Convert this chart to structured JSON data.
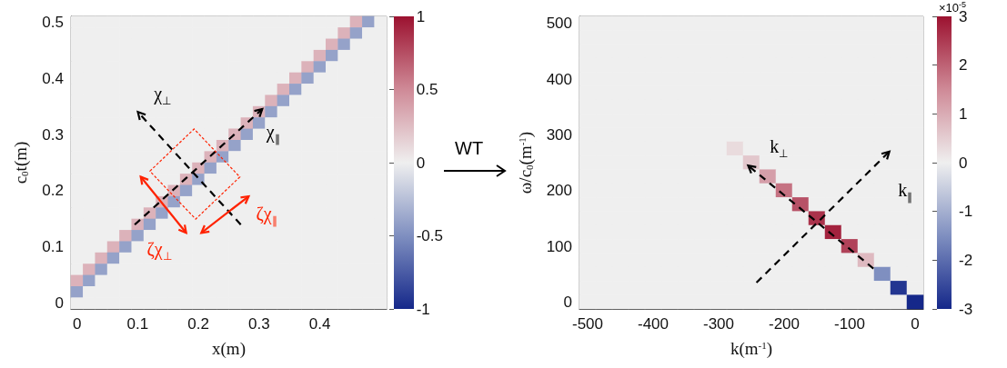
{
  "chart_data": [
    {
      "type": "heatmap",
      "xlabel": "x(m)",
      "ylabel": "c$_{0}$t(m)",
      "categories": [
        "0",
        null,
        null,
        null,
        null,
        "0.1",
        null,
        null,
        null,
        null,
        "0.2",
        null,
        null,
        null,
        null,
        "0.3",
        null,
        null,
        null,
        null,
        "0.4",
        null,
        null,
        null,
        null,
        null
      ],
      "y_categories": [
        "0.5",
        null,
        null,
        null,
        null,
        "0.4",
        null,
        null,
        null,
        null,
        "0.3",
        null,
        null,
        null,
        null,
        "0.2",
        null,
        null,
        null,
        null,
        "0.1",
        null,
        null,
        null,
        null,
        "0"
      ],
      "clim": [
        -1,
        1
      ],
      "cticks": [
        -1,
        -0.5,
        0,
        0.5,
        1
      ],
      "cells": [
        [
          0,
          0,
          0,
          0,
          0,
          0,
          0,
          0,
          0,
          0,
          0,
          0,
          0,
          0,
          0,
          0,
          0,
          0,
          0,
          0,
          0,
          0,
          0,
          0.3,
          -0.4,
          0
        ],
        [
          0,
          0,
          0,
          0,
          0,
          0,
          0,
          0,
          0,
          0,
          0,
          0,
          0,
          0,
          0,
          0,
          0,
          0,
          0,
          0,
          0,
          0,
          0.3,
          -0.4,
          0,
          0
        ],
        [
          0,
          0,
          0,
          0,
          0,
          0,
          0,
          0,
          0,
          0,
          0,
          0,
          0,
          0,
          0,
          0,
          0,
          0,
          0,
          0,
          0,
          0.3,
          -0.4,
          0,
          0,
          0
        ],
        [
          0,
          0,
          0,
          0,
          0,
          0,
          0,
          0,
          0,
          0,
          0,
          0,
          0,
          0,
          0,
          0,
          0,
          0,
          0,
          0,
          0.3,
          -0.4,
          0,
          0,
          0,
          0
        ],
        [
          0,
          0,
          0,
          0,
          0,
          0,
          0,
          0,
          0,
          0,
          0,
          0,
          0,
          0,
          0,
          0,
          0,
          0,
          0,
          0.3,
          -0.4,
          0,
          0,
          0,
          0,
          0
        ],
        [
          0,
          0,
          0,
          0,
          0,
          0,
          0,
          0,
          0,
          0,
          0,
          0,
          0,
          0,
          0,
          0,
          0,
          0,
          0.3,
          -0.4,
          0,
          0,
          0,
          0,
          0,
          0
        ],
        [
          0,
          0,
          0,
          0,
          0,
          0,
          0,
          0,
          0,
          0,
          0,
          0,
          0,
          0,
          0,
          0,
          0,
          0.3,
          -0.4,
          0,
          0,
          0,
          0,
          0,
          0,
          0
        ],
        [
          0,
          0,
          0,
          0,
          0,
          0,
          0,
          0,
          0,
          0,
          0,
          0,
          0,
          0,
          0,
          0,
          0.3,
          -0.4,
          0,
          0,
          0,
          0,
          0,
          0,
          0,
          0
        ],
        [
          0,
          0,
          0,
          0,
          0,
          0,
          0,
          0,
          0,
          0,
          0,
          0,
          0,
          0,
          0,
          0.3,
          -0.4,
          0,
          0,
          0,
          0,
          0,
          0,
          0,
          0,
          0
        ],
        [
          0,
          0,
          0,
          0,
          0,
          0,
          0,
          0,
          0,
          0,
          0,
          0,
          0,
          0,
          0.3,
          -0.4,
          0,
          0,
          0,
          0,
          0,
          0,
          0,
          0,
          0,
          0
        ],
        [
          0,
          0,
          0,
          0,
          0,
          0,
          0,
          0,
          0,
          0,
          0,
          0,
          0,
          0.3,
          -0.4,
          0,
          0,
          0,
          0,
          0,
          0,
          0,
          0,
          0,
          0,
          0
        ],
        [
          0,
          0,
          0,
          0,
          0,
          0,
          0,
          0,
          0,
          0,
          0,
          0,
          0.3,
          -0.4,
          0,
          0,
          0,
          0,
          0,
          0,
          0,
          0,
          0,
          0,
          0,
          0
        ],
        [
          0,
          0,
          0,
          0,
          0,
          0,
          0,
          0,
          0,
          0,
          0,
          0.3,
          -0.4,
          0,
          0,
          0,
          0,
          0,
          0,
          0,
          0,
          0,
          0,
          0,
          0,
          0
        ],
        [
          0,
          0,
          0,
          0,
          0,
          0,
          0,
          0,
          0,
          0,
          0.3,
          -0.4,
          0,
          0,
          0,
          0,
          0,
          0,
          0,
          0,
          0,
          0,
          0,
          0,
          0,
          0
        ],
        [
          0,
          0,
          0,
          0,
          0,
          0,
          0,
          0,
          0,
          0.3,
          -0.4,
          0,
          0,
          0,
          0,
          0,
          0,
          0,
          0,
          0,
          0,
          0,
          0,
          0,
          0,
          0
        ],
        [
          0,
          0,
          0,
          0,
          0,
          0,
          0,
          0,
          0.3,
          -0.4,
          0,
          0,
          0,
          0,
          0,
          0,
          0,
          0,
          0,
          0,
          0,
          0,
          0,
          0,
          0,
          0
        ],
        [
          0,
          0,
          0,
          0,
          0,
          0,
          0,
          0.3,
          -0.4,
          0,
          0,
          0,
          0,
          0,
          0,
          0,
          0,
          0,
          0,
          0,
          0,
          0,
          0,
          0,
          0,
          0
        ],
        [
          0,
          0,
          0,
          0,
          0,
          0,
          0.3,
          -0.4,
          0,
          0,
          0,
          0,
          0,
          0,
          0,
          0,
          0,
          0,
          0,
          0,
          0,
          0,
          0,
          0,
          0,
          0
        ],
        [
          0,
          0,
          0,
          0,
          0,
          0.3,
          -0.4,
          0,
          0,
          0,
          0,
          0,
          0,
          0,
          0,
          0,
          0,
          0,
          0,
          0,
          0,
          0,
          0,
          0,
          0,
          0
        ],
        [
          0,
          0,
          0,
          0,
          0.3,
          -0.4,
          0,
          0,
          0,
          0,
          0,
          0,
          0,
          0,
          0,
          0,
          0,
          0,
          0,
          0,
          0,
          0,
          0,
          0,
          0,
          0
        ],
        [
          0,
          0,
          0,
          0.3,
          -0.4,
          0,
          0,
          0,
          0,
          0,
          0,
          0,
          0,
          0,
          0,
          0,
          0,
          0,
          0,
          0,
          0,
          0,
          0,
          0,
          0,
          0
        ],
        [
          0,
          0,
          0.3,
          -0.4,
          0,
          0,
          0,
          0,
          0,
          0,
          0,
          0,
          0,
          0,
          0,
          0,
          0,
          0,
          0,
          0,
          0,
          0,
          0,
          0,
          0,
          0
        ],
        [
          0,
          0.3,
          -0.4,
          0,
          0,
          0,
          0,
          0,
          0,
          0,
          0,
          0,
          0,
          0,
          0,
          0,
          0,
          0,
          0,
          0,
          0,
          0,
          0,
          0,
          0,
          0
        ],
        [
          0.3,
          -0.4,
          0,
          0,
          0,
          0,
          0,
          0,
          0,
          0,
          0,
          0,
          0,
          0,
          0,
          0,
          0,
          0,
          0,
          0,
          0,
          0,
          0,
          0,
          0,
          0
        ],
        [
          -0.4,
          0,
          0,
          0,
          0,
          0,
          0,
          0,
          0,
          0,
          0,
          0,
          0,
          0,
          0,
          0,
          0,
          0,
          0,
          0,
          0,
          0,
          0,
          0,
          0,
          0
        ],
        [
          0,
          0,
          0,
          0,
          0,
          0,
          0,
          0,
          0,
          0,
          0,
          0,
          0,
          0,
          0,
          0,
          0,
          0,
          0,
          0,
          0,
          0,
          0,
          0,
          0,
          0
        ]
      ],
      "annotations": [
        "χ$_{⊥}$",
        "χ$_{∥}$",
        "ζχ$_{⊥}$",
        "ζχ$_{∥}$",
        "WT"
      ]
    },
    {
      "type": "heatmap",
      "xlabel": "k(m$^{-1}$)",
      "ylabel": "ω/c$_{0}$(m$^{-1}$)",
      "clabel": "×10$^{-5}$",
      "categories": [
        "-500",
        null,
        null,
        null,
        "-400",
        null,
        null,
        null,
        "-300",
        null,
        null,
        null,
        "-200",
        null,
        null,
        null,
        "-100",
        null,
        null,
        null,
        "0"
      ],
      "y_categories": [
        "500",
        null,
        null,
        null,
        "400",
        null,
        null,
        null,
        "300",
        null,
        null,
        null,
        "200",
        null,
        null,
        null,
        "100",
        null,
        null,
        null,
        "0"
      ],
      "clim": [
        -3,
        3
      ],
      "cticks": [
        -3,
        -2,
        -1,
        0,
        1,
        2,
        3
      ],
      "cells": [
        [
          0,
          0,
          0,
          0,
          0,
          0,
          0,
          0,
          0,
          0,
          0,
          0,
          0,
          0,
          0,
          0,
          0,
          0,
          0,
          0,
          0
        ],
        [
          0,
          0,
          0,
          0,
          0,
          0,
          0,
          0,
          0,
          0,
          0,
          0,
          0,
          0,
          0,
          0,
          0,
          0,
          0,
          0,
          0
        ],
        [
          0,
          0,
          0,
          0,
          0,
          0,
          0,
          0,
          0,
          0,
          0,
          0,
          0,
          0,
          0,
          0,
          0,
          0,
          0,
          0,
          0
        ],
        [
          0,
          0,
          0,
          0,
          0,
          0,
          0,
          0,
          0,
          0,
          0,
          0,
          0,
          0,
          0,
          0,
          0,
          0,
          0,
          0,
          0
        ],
        [
          0,
          0,
          0,
          0,
          0,
          0,
          0,
          0,
          0,
          0,
          0,
          0,
          0,
          0,
          0,
          0,
          0,
          0,
          0,
          0,
          0
        ],
        [
          0,
          0,
          0,
          0,
          0,
          0,
          0,
          0,
          0,
          0,
          0,
          0,
          0,
          0,
          0,
          0,
          0,
          0,
          0,
          0,
          0
        ],
        [
          0,
          0,
          0,
          0,
          0,
          0,
          0,
          0,
          0,
          0,
          0,
          0,
          0,
          0,
          0,
          0,
          0,
          0,
          0,
          0,
          0
        ],
        [
          0,
          0,
          0,
          0,
          0,
          0,
          0,
          0,
          0,
          0,
          0,
          0,
          0,
          0,
          0,
          0,
          0,
          0,
          0,
          0,
          0
        ],
        [
          0,
          0,
          0,
          0,
          0,
          0,
          0,
          0,
          0,
          0,
          0,
          0,
          0,
          0,
          0,
          0,
          0,
          0,
          0,
          0,
          0
        ],
        [
          0,
          0,
          0,
          0,
          0,
          0,
          0,
          0,
          0,
          0.3,
          0,
          0,
          0,
          0,
          0,
          0,
          0,
          0,
          0,
          0,
          0
        ],
        [
          0,
          0,
          0,
          0,
          0,
          0,
          0,
          0,
          0,
          0,
          0.6,
          0,
          0,
          0,
          0,
          0,
          0,
          0,
          0,
          0,
          0
        ],
        [
          0,
          0,
          0,
          0,
          0,
          0,
          0,
          0,
          0,
          0,
          0,
          1.2,
          0,
          0,
          0,
          0,
          0,
          0,
          0,
          0,
          0
        ],
        [
          0,
          0,
          0,
          0,
          0,
          0,
          0,
          0,
          0,
          0,
          0,
          0,
          1.8,
          0,
          0,
          0,
          0,
          0,
          0,
          0,
          0
        ],
        [
          0,
          0,
          0,
          0,
          0,
          0,
          0,
          0,
          0,
          0,
          0,
          0,
          0,
          2.2,
          0,
          0,
          0,
          0,
          0,
          0,
          0
        ],
        [
          0,
          0,
          0,
          0,
          0,
          0,
          0,
          0,
          0,
          0,
          0,
          0,
          0,
          0,
          2.6,
          0,
          0,
          0,
          0,
          0,
          0
        ],
        [
          0,
          0,
          0,
          0,
          0,
          0,
          0,
          0,
          0,
          0,
          0,
          0,
          0,
          0,
          0,
          2.8,
          0,
          0,
          0,
          0,
          0
        ],
        [
          0,
          0,
          0,
          0,
          0,
          0,
          0,
          0,
          0,
          0,
          0,
          0,
          0,
          0,
          0,
          0,
          2.4,
          0,
          0,
          0,
          0
        ],
        [
          0,
          0,
          0,
          0,
          0,
          0,
          0,
          0,
          0,
          0,
          0,
          0,
          0,
          0,
          0,
          0,
          0,
          0.8,
          0,
          0,
          0
        ],
        [
          0,
          0,
          0,
          0,
          0,
          0,
          0,
          0,
          0,
          0,
          0,
          0,
          0,
          0,
          0,
          0,
          0,
          0,
          -1.5,
          0,
          0
        ],
        [
          0,
          0,
          0,
          0,
          0,
          0,
          0,
          0,
          0,
          0,
          0,
          0,
          0,
          0,
          0,
          0,
          0,
          0,
          0,
          -2.8,
          0
        ],
        [
          0,
          0,
          0,
          0,
          0,
          0,
          0,
          0,
          0,
          0,
          0,
          0,
          0,
          0,
          0,
          0,
          0,
          0,
          0,
          0,
          -3
        ]
      ],
      "annotations": [
        "k$_{⊥}$",
        "k$_{∥}$"
      ]
    }
  ]
}
